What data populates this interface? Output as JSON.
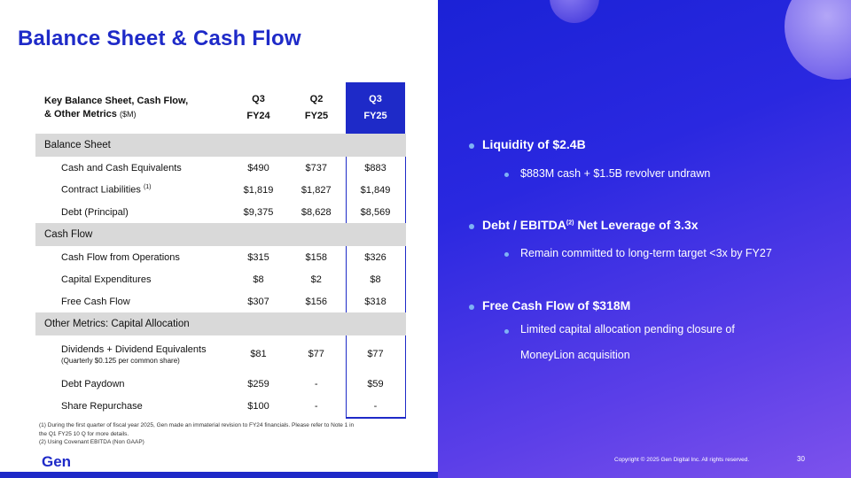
{
  "title": "Balance Sheet & Cash Flow",
  "table": {
    "header_label_line1": "Key Balance Sheet, Cash Flow,",
    "header_label_line2": "& Other Metrics",
    "header_unit": "($M)",
    "columns": [
      {
        "line1": "Q3",
        "line2": "FY24"
      },
      {
        "line1": "Q2",
        "line2": "FY25"
      },
      {
        "line1": "Q3",
        "line2": "FY25"
      }
    ],
    "sections": [
      {
        "name": "Balance Sheet",
        "rows": [
          {
            "label": "Cash and Cash Equivalents",
            "sup": "",
            "values": [
              "$490",
              "$737",
              "$883"
            ]
          },
          {
            "label": "Contract Liabilities",
            "sup": "(1)",
            "values": [
              "$1,819",
              "$1,827",
              "$1,849"
            ]
          },
          {
            "label": "Debt (Principal)",
            "sup": "",
            "values": [
              "$9,375",
              "$8,628",
              "$8,569"
            ]
          }
        ]
      },
      {
        "name": "Cash Flow",
        "rows": [
          {
            "label": "Cash Flow from Operations",
            "sup": "",
            "values": [
              "$315",
              "$158",
              "$326"
            ]
          },
          {
            "label": "Capital Expenditures",
            "sup": "",
            "values": [
              "$8",
              "$2",
              "$8"
            ]
          },
          {
            "label": "Free Cash Flow",
            "sup": "",
            "values": [
              "$307",
              "$156",
              "$318"
            ]
          }
        ]
      },
      {
        "name": "Other Metrics: Capital Allocation",
        "rows": [
          {
            "label": "Dividends + Dividend Equivalents",
            "sub": "(Quarterly $0.125 per common share)",
            "values": [
              "$81",
              "$77",
              "$77"
            ]
          },
          {
            "label": "Debt Paydown",
            "sup": "",
            "values": [
              "$259",
              "-",
              "$59"
            ]
          },
          {
            "label": "Share Repurchase",
            "sup": "",
            "values": [
              "$100",
              "-",
              "-"
            ]
          }
        ]
      }
    ]
  },
  "footnotes": [
    "(1) During the first quarter of fiscal year 2025, Gen made an immaterial revision to FY24 financials. Please refer to Note 1 in the Q1 FY25 10 Q for more details.",
    "(2) Using Covenant EBITDA (Non GAAP)"
  ],
  "logo": "Gen",
  "bullets": [
    {
      "text": "Liquidity of $2.4B",
      "subs": [
        "$883M cash + $1.5B revolver undrawn"
      ]
    },
    {
      "text_before": "Debt / EBITDA",
      "sup": "(2)",
      "text_after": " Net Leverage of 3.3x",
      "subs": [
        "Remain committed to long-term target <3x by FY27"
      ]
    },
    {
      "text": "Free Cash Flow of $318M",
      "subs": [
        "Limited capital allocation pending closure of",
        "MoneyLion acquisition"
      ]
    }
  ],
  "copyright": "Copyright © 2025 Gen Digital Inc. All rights reserved.",
  "page_number": "30",
  "colors": {
    "brand": "#1e2ac8",
    "section_bg": "#d9d9d9",
    "bullet_dot": "#7fb2f5"
  }
}
